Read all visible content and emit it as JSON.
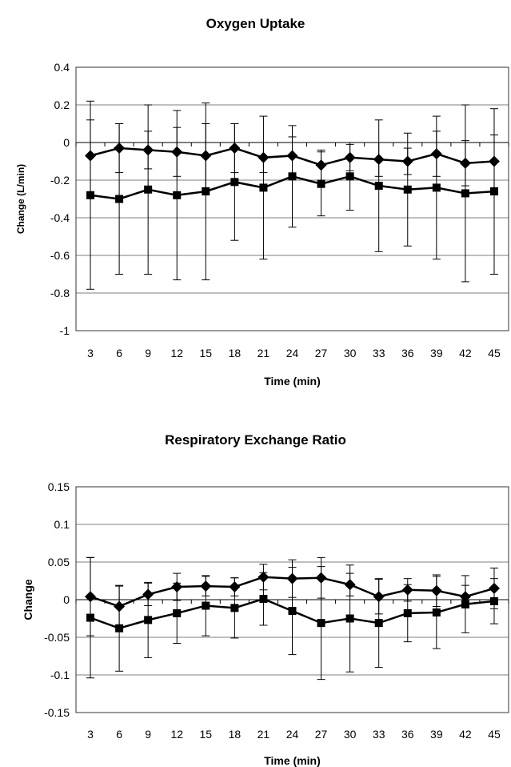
{
  "chart_data": [
    {
      "type": "line",
      "title": "Oxygen Uptake",
      "xlabel": "Time (min)",
      "ylabel": "Change (L/min)",
      "categories": [
        "3",
        "6",
        "9",
        "12",
        "15",
        "18",
        "21",
        "24",
        "27",
        "30",
        "33",
        "36",
        "39",
        "42",
        "45"
      ],
      "ylim": [
        -1,
        0.4
      ],
      "yticks": [
        "0.4",
        "0.2",
        "0",
        "-0.2",
        "-0.4",
        "-0.6",
        "-0.8",
        "-1"
      ],
      "grid": true,
      "series": [
        {
          "marker": "diamond",
          "values": [
            -0.07,
            -0.03,
            -0.04,
            -0.05,
            -0.07,
            -0.03,
            -0.08,
            -0.07,
            -0.12,
            -0.08,
            -0.09,
            -0.1,
            -0.06,
            -0.11,
            -0.1
          ],
          "error_low": [
            0.2,
            0.13,
            0.1,
            0.13,
            0.17,
            0.13,
            0.08,
            0.1,
            0.08,
            0.07,
            0.09,
            0.07,
            0.12,
            0.12,
            0.14
          ],
          "error_high": [
            0.19,
            0.13,
            0.1,
            0.13,
            0.17,
            0.13,
            0.08,
            0.1,
            0.08,
            0.07,
            0.09,
            0.07,
            0.12,
            0.12,
            0.14
          ]
        },
        {
          "marker": "square",
          "values": [
            -0.28,
            -0.3,
            -0.25,
            -0.28,
            -0.26,
            -0.21,
            -0.24,
            -0.18,
            -0.22,
            -0.18,
            -0.23,
            -0.25,
            -0.24,
            -0.27,
            -0.26
          ],
          "error_low": [
            0.5,
            0.4,
            0.45,
            0.45,
            0.47,
            0.31,
            0.38,
            0.27,
            0.17,
            0.18,
            0.35,
            0.3,
            0.38,
            0.47,
            0.44
          ],
          "error_high": [
            0.5,
            0.4,
            0.45,
            0.45,
            0.47,
            0.31,
            0.38,
            0.27,
            0.17,
            0.18,
            0.35,
            0.3,
            0.38,
            0.47,
            0.44
          ]
        }
      ]
    },
    {
      "type": "line",
      "title": "Respiratory Exchange Ratio",
      "xlabel": "Time (min)",
      "ylabel": "Change",
      "categories": [
        "3",
        "6",
        "9",
        "12",
        "15",
        "18",
        "21",
        "24",
        "27",
        "30",
        "33",
        "36",
        "39",
        "42",
        "45"
      ],
      "ylim": [
        -0.15,
        0.15
      ],
      "yticks": [
        "0.15",
        "0.1",
        "0.05",
        "0",
        "-0.05",
        "-0.1",
        "-0.15"
      ],
      "grid": true,
      "series": [
        {
          "marker": "diamond",
          "values": [
            0.004,
            -0.009,
            0.007,
            0.017,
            0.018,
            0.017,
            0.03,
            0.028,
            0.029,
            0.02,
            0.004,
            0.013,
            0.012,
            0.004,
            0.015
          ],
          "error_low": [
            0.052,
            0.027,
            0.015,
            0.018,
            0.013,
            0.012,
            0.017,
            0.025,
            0.027,
            0.015,
            0.023,
            0.015,
            0.021,
            0.015,
            0.027
          ],
          "error_high": [
            0.052,
            0.027,
            0.015,
            0.018,
            0.013,
            0.012,
            0.017,
            0.025,
            0.027,
            0.015,
            0.023,
            0.015,
            0.021,
            0.015,
            0.027
          ]
        },
        {
          "marker": "square",
          "values": [
            -0.024,
            -0.038,
            -0.027,
            -0.018,
            -0.008,
            -0.011,
            0.001,
            -0.015,
            -0.031,
            -0.025,
            -0.031,
            -0.018,
            -0.017,
            -0.006,
            -0.002
          ],
          "error_low": [
            0.08,
            0.057,
            0.05,
            0.04,
            0.04,
            0.04,
            0.035,
            0.058,
            0.075,
            0.071,
            0.059,
            0.038,
            0.048,
            0.038,
            0.03
          ],
          "error_high": [
            0.08,
            0.057,
            0.05,
            0.04,
            0.04,
            0.04,
            0.035,
            0.058,
            0.075,
            0.071,
            0.059,
            0.038,
            0.048,
            0.038,
            0.03
          ]
        }
      ]
    }
  ]
}
